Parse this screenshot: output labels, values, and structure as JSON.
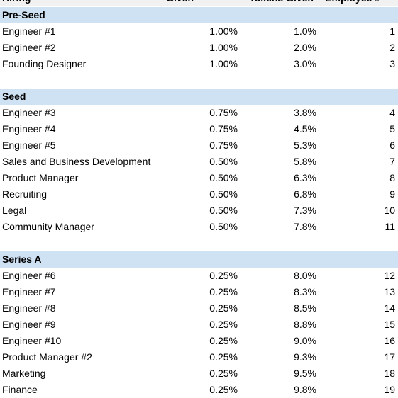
{
  "table": {
    "header": [
      "Hiring",
      "Given",
      "Tokens Given",
      "Employee #"
    ],
    "sections": [
      {
        "title": "Pre-Seed",
        "rows": [
          [
            "Engineer #1",
            "1.00%",
            "1.0%",
            "1"
          ],
          [
            "Engineer #2",
            "1.00%",
            "2.0%",
            "2"
          ],
          [
            "Founding Designer",
            "1.00%",
            "3.0%",
            "3"
          ]
        ]
      },
      {
        "title": "Seed",
        "rows": [
          [
            "Engineer #3",
            "0.75%",
            "3.8%",
            "4"
          ],
          [
            "Engineer #4",
            "0.75%",
            "4.5%",
            "5"
          ],
          [
            "Engineer #5",
            "0.75%",
            "5.3%",
            "6"
          ],
          [
            "Sales and Business Development",
            "0.50%",
            "5.8%",
            "7"
          ],
          [
            "Product Manager",
            "0.50%",
            "6.3%",
            "8"
          ],
          [
            "Recruiting",
            "0.50%",
            "6.8%",
            "9"
          ],
          [
            "Legal",
            "0.50%",
            "7.3%",
            "10"
          ],
          [
            "Community Manager",
            "0.50%",
            "7.8%",
            "11"
          ]
        ]
      },
      {
        "title": "Series A",
        "rows": [
          [
            "Engineer #6",
            "0.25%",
            "8.0%",
            "12"
          ],
          [
            "Engineer #7",
            "0.25%",
            "8.3%",
            "13"
          ],
          [
            "Engineer #8",
            "0.25%",
            "8.5%",
            "14"
          ],
          [
            "Engineer #9",
            "0.25%",
            "8.8%",
            "15"
          ],
          [
            "Engineer #10",
            "0.25%",
            "9.0%",
            "16"
          ],
          [
            "Product Manager #2",
            "0.25%",
            "9.3%",
            "17"
          ],
          [
            "Marketing",
            "0.25%",
            "9.5%",
            "18"
          ],
          [
            "Finance",
            "0.25%",
            "9.8%",
            "19"
          ]
        ]
      }
    ]
  }
}
